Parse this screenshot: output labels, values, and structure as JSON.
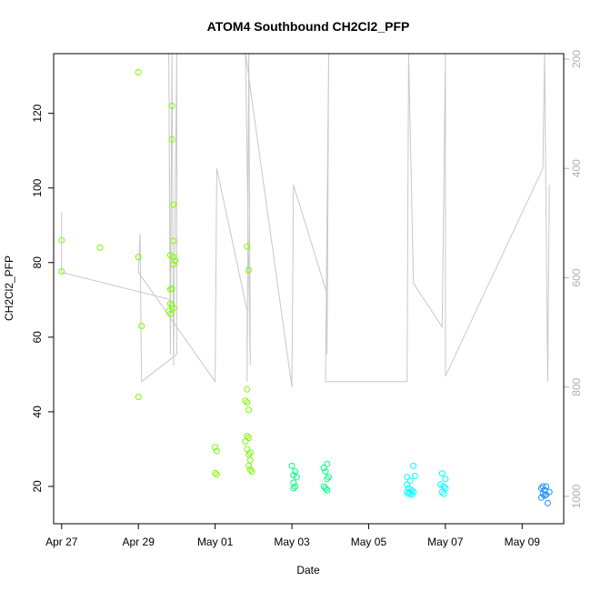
{
  "chart_data": {
    "type": "scatter",
    "title": "ATOM4 Southbound CH2Cl2_PFP",
    "xlabel": "Date",
    "ylabel": "CH2Cl2_PFP",
    "x_ticks": [
      {
        "date": "2016-04-27",
        "label": "Apr 27"
      },
      {
        "date": "2016-04-29",
        "label": "Apr 29"
      },
      {
        "date": "2016-05-01",
        "label": "May 01"
      },
      {
        "date": "2016-05-03",
        "label": "May 03"
      },
      {
        "date": "2016-05-05",
        "label": "May 05"
      },
      {
        "date": "2016-05-07",
        "label": "May 07"
      },
      {
        "date": "2016-05-09",
        "label": "May 09"
      }
    ],
    "xlim": [
      "2016-04-26 19:00",
      "2016-05-10 02:00"
    ],
    "ylim": [
      10,
      136
    ],
    "y_ticks": [
      20,
      40,
      60,
      80,
      100,
      120
    ],
    "y2_label": "",
    "y2_ticks": [
      200,
      400,
      600,
      800,
      1000
    ],
    "y2lim": [
      1050,
      190
    ],
    "color_scale": [
      "#7cfc00",
      "#00ff7f",
      "#00ffff",
      "#1e90ff"
    ],
    "line_color": "#c8c8c8",
    "grid": false,
    "series": [
      {
        "points": [
          [
            "2016-04-27 00:00",
            86.0
          ],
          [
            "2016-04-27 00:00",
            77.6
          ],
          [
            "2016-04-28 00:00",
            84.0
          ],
          [
            "2016-04-29 00:00",
            131.0
          ],
          [
            "2016-04-29 00:00",
            81.5
          ],
          [
            "2016-04-29 02:00",
            63.0
          ],
          [
            "2016-04-29 00:00",
            44.0
          ],
          [
            "2016-04-29 21:00",
            122.0
          ],
          [
            "2016-04-29 21:00",
            113.0
          ],
          [
            "2016-04-29 22:00",
            95.5
          ],
          [
            "2016-04-29 22:00",
            85.8
          ],
          [
            "2016-04-29 20:00",
            82.0
          ],
          [
            "2016-04-29 22:00",
            81.5
          ],
          [
            "2016-04-29 23:00",
            80.5
          ],
          [
            "2016-04-29 22:00",
            79.5
          ],
          [
            "2016-04-29 21:00",
            73.0
          ],
          [
            "2016-04-29 20:00",
            72.8
          ],
          [
            "2016-04-29 20:00",
            69.0
          ],
          [
            "2016-04-29 21:00",
            68.5
          ],
          [
            "2016-04-29 22:00",
            67.8
          ],
          [
            "2016-04-29 19:00",
            67.0
          ],
          [
            "2016-04-29 20:00",
            66.2
          ],
          [
            "2016-05-01 00:00",
            30.5
          ],
          [
            "2016-05-01 01:00",
            29.5
          ],
          [
            "2016-05-01 00:00",
            23.6
          ],
          [
            "2016-05-01 01:00",
            23.2
          ],
          [
            "2016-05-01 20:00",
            84.3
          ],
          [
            "2016-05-01 21:00",
            78.0
          ],
          [
            "2016-05-01 20:00",
            46.0
          ],
          [
            "2016-05-01 19:00",
            43.0
          ],
          [
            "2016-05-01 20:00",
            42.5
          ],
          [
            "2016-05-01 21:00",
            40.5
          ],
          [
            "2016-05-01 20:00",
            33.5
          ],
          [
            "2016-05-01 21:00",
            33.0
          ],
          [
            "2016-05-01 19:00",
            32.0
          ],
          [
            "2016-05-01 20:00",
            30.0
          ],
          [
            "2016-05-01 22:00",
            29.0
          ],
          [
            "2016-05-01 21:00",
            28.5
          ],
          [
            "2016-05-01 22:00",
            27.0
          ],
          [
            "2016-05-01 21:00",
            25.5
          ],
          [
            "2016-05-01 22:00",
            24.5
          ],
          [
            "2016-05-01 23:00",
            24.0
          ]
        ]
      },
      {
        "points": [
          [
            "2016-05-03 00:00",
            25.5
          ],
          [
            "2016-05-03 02:00",
            24.0
          ],
          [
            "2016-05-03 01:00",
            23.0
          ],
          [
            "2016-05-03 03:00",
            22.5
          ],
          [
            "2016-05-03 01:00",
            21.0
          ],
          [
            "2016-05-03 02:00",
            20.0
          ],
          [
            "2016-05-03 01:00",
            19.5
          ],
          [
            "2016-05-03 20:00",
            25.0
          ],
          [
            "2016-05-03 22:00",
            26.0
          ],
          [
            "2016-05-03 21:00",
            24.0
          ],
          [
            "2016-05-03 22:00",
            22.0
          ],
          [
            "2016-05-03 23:00",
            22.5
          ],
          [
            "2016-05-03 20:00",
            20.0
          ],
          [
            "2016-05-03 21:00",
            19.5
          ],
          [
            "2016-05-03 22:00",
            19.0
          ]
        ]
      },
      {
        "points": [
          [
            "2016-05-06 00:00",
            22.5
          ],
          [
            "2016-05-06 04:00",
            25.5
          ],
          [
            "2016-05-06 05:00",
            22.8
          ],
          [
            "2016-05-06 02:00",
            21.5
          ],
          [
            "2016-05-06 00:00",
            20.5
          ],
          [
            "2016-05-06 01:00",
            19.5
          ],
          [
            "2016-05-06 03:00",
            19.0
          ],
          [
            "2016-05-06 00:00",
            18.5
          ],
          [
            "2016-05-06 02:00",
            18.3
          ],
          [
            "2016-05-06 04:00",
            18.5
          ],
          [
            "2016-05-06 01:00",
            18.0
          ],
          [
            "2016-05-06 03:00",
            17.8
          ],
          [
            "2016-05-06 22:00",
            23.5
          ],
          [
            "2016-05-07 00:00",
            22.0
          ],
          [
            "2016-05-06 21:00",
            20.5
          ],
          [
            "2016-05-06 23:00",
            20.0
          ],
          [
            "2016-05-07 00:00",
            19.5
          ],
          [
            "2016-05-06 22:00",
            18.5
          ],
          [
            "2016-05-06 23:00",
            18.0
          ]
        ]
      },
      {
        "points": [
          [
            "2016-05-09 13:00",
            20.0
          ],
          [
            "2016-05-09 15:00",
            20.0
          ],
          [
            "2016-05-09 12:00",
            19.5
          ],
          [
            "2016-05-09 14:00",
            19.0
          ],
          [
            "2016-05-09 17:00",
            18.5
          ],
          [
            "2016-05-09 13:00",
            18.0
          ],
          [
            "2016-05-09 15:00",
            17.8
          ],
          [
            "2016-05-09 12:00",
            17.0
          ],
          [
            "2016-05-09 14:00",
            17.5
          ],
          [
            "2016-05-09 16:00",
            15.5
          ]
        ]
      }
    ],
    "line_series": {
      "y2_values": [
        [
          "2016-04-27 00:00",
          480
        ],
        [
          "2016-04-27 00:00",
          590
        ],
        [
          "2016-04-29 20:00",
          640
        ],
        [
          "2016-04-29 19:00",
          190
        ],
        [
          "2016-04-29 20:00",
          740
        ],
        [
          "2016-04-29 21:00",
          190
        ],
        [
          "2016-04-29 22:00",
          760
        ],
        [
          "2016-04-30 00:00",
          190
        ],
        [
          "2016-04-30 00:00",
          740
        ],
        [
          "2016-04-29 02:00",
          790
        ],
        [
          "2016-04-29 01:00",
          520
        ],
        [
          "2016-04-29 00:00",
          590
        ],
        [
          "2016-05-01 00:00",
          790
        ],
        [
          "2016-05-01 01:00",
          400
        ],
        [
          "2016-05-01 20:00",
          660
        ],
        [
          "2016-05-01 20:00",
          790
        ],
        [
          "2016-05-01 21:00",
          190
        ],
        [
          "2016-05-01 22:00",
          760
        ],
        [
          "2016-05-01 19:00",
          190
        ],
        [
          "2016-05-03 00:00",
          800
        ],
        [
          "2016-05-03 01:00",
          430
        ],
        [
          "2016-05-03 22:00",
          630
        ],
        [
          "2016-05-03 22:00",
          740
        ],
        [
          "2016-05-03 23:00",
          190
        ],
        [
          "2016-05-03 21:00",
          790
        ],
        [
          "2016-05-06 00:00",
          790
        ],
        [
          "2016-05-06 01:00",
          190
        ],
        [
          "2016-05-06 04:00",
          610
        ],
        [
          "2016-05-06 22:00",
          690
        ],
        [
          "2016-05-07 00:00",
          190
        ],
        [
          "2016-05-07 00:00",
          780
        ],
        [
          "2016-05-09 13:00",
          400
        ],
        [
          "2016-05-09 14:00",
          190
        ],
        [
          "2016-05-09 16:00",
          790
        ],
        [
          "2016-05-09 17:00",
          430
        ]
      ]
    }
  }
}
